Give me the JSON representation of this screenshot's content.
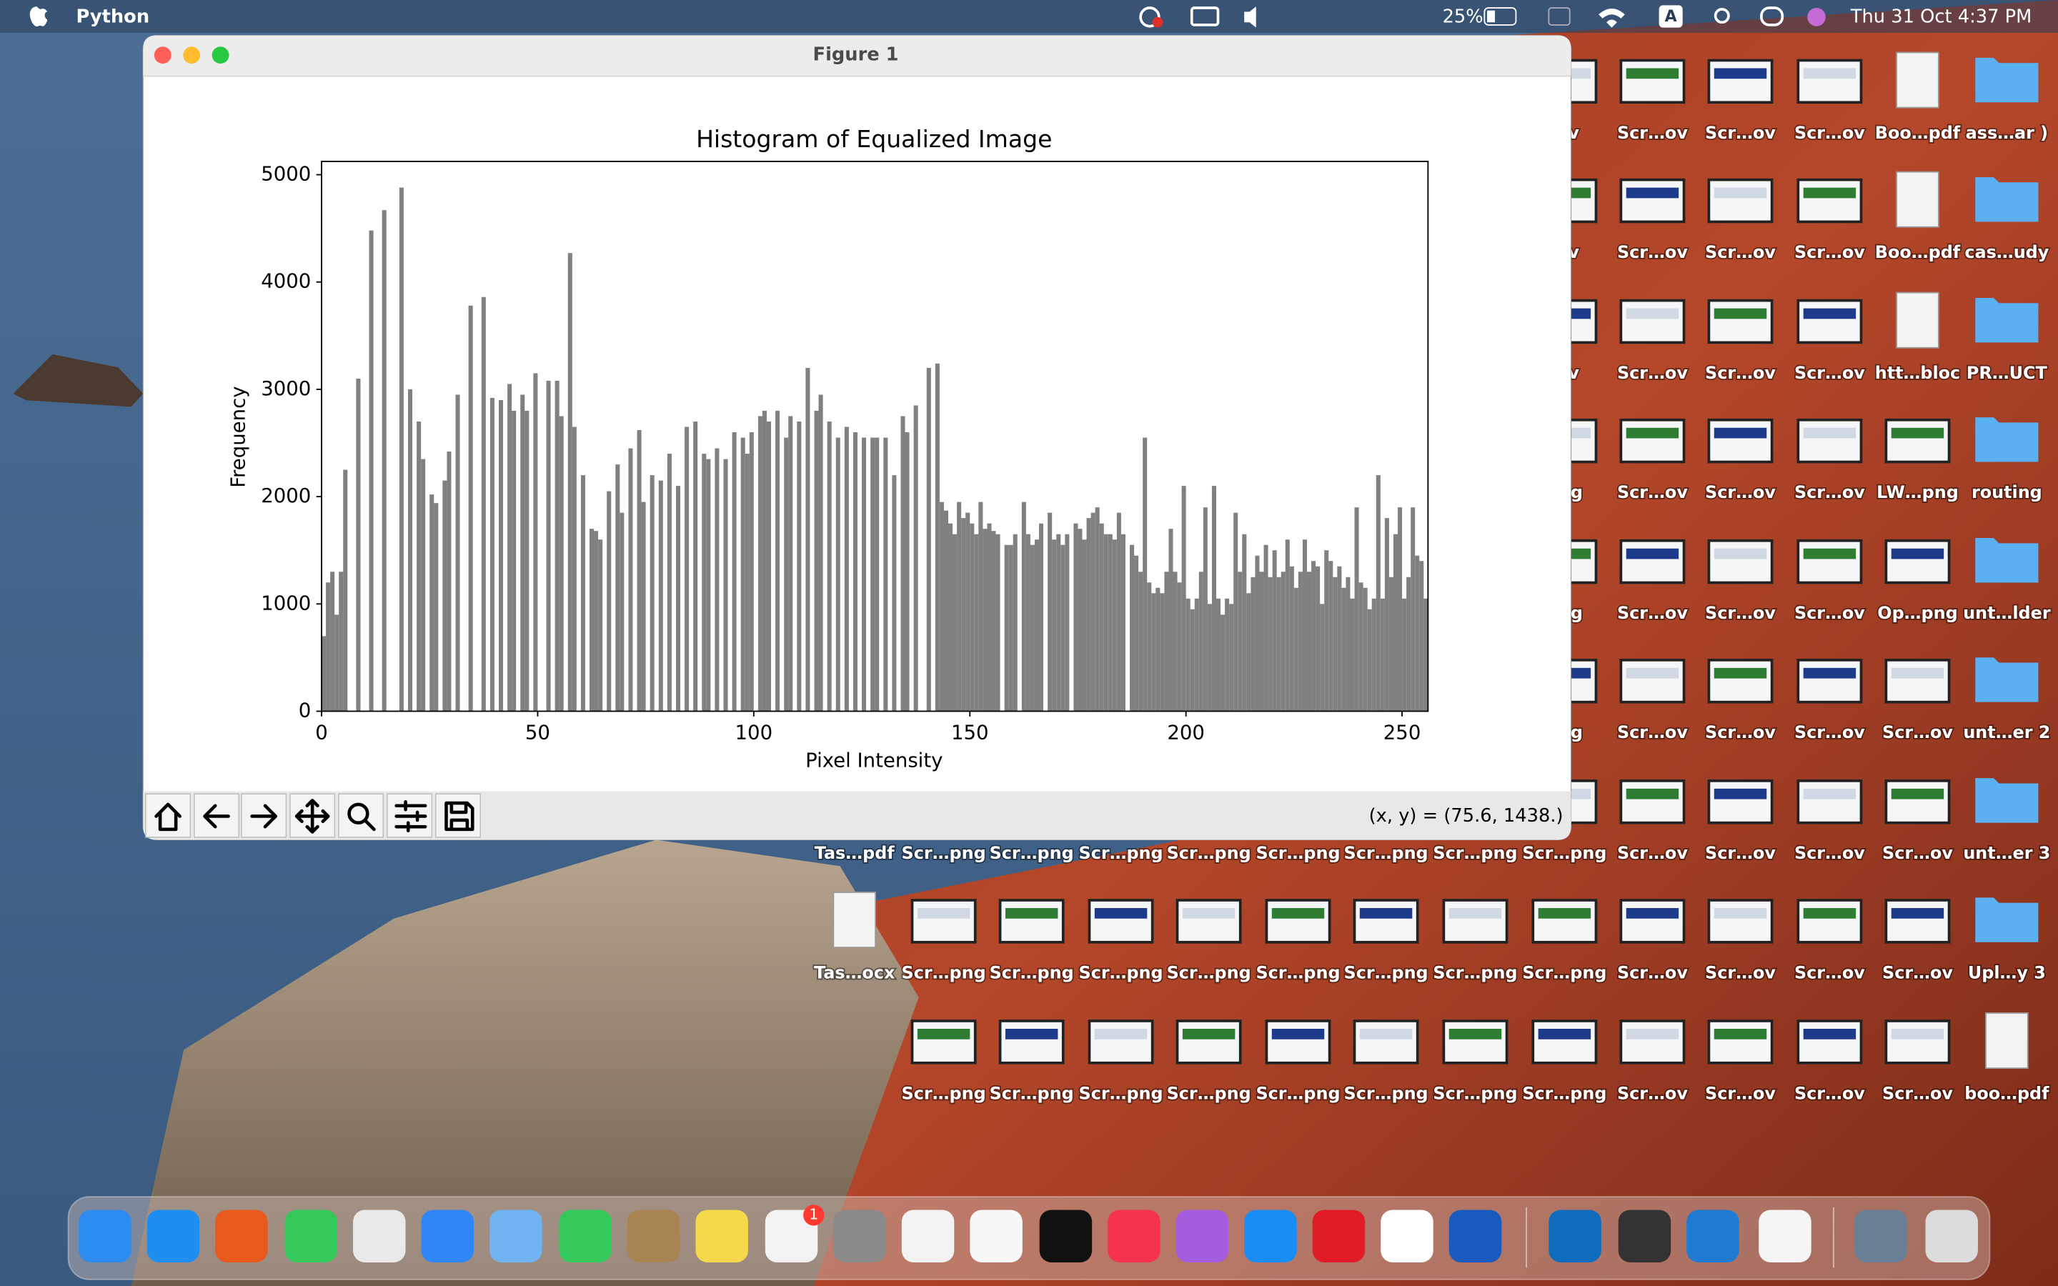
{
  "menubar": {
    "app": "Python",
    "input": "A",
    "battery": "25%",
    "clock": "Thu 31 Oct  4:37 PM"
  },
  "window": {
    "title": "Figure 1",
    "status": "(x, y) = (75.6, 1438.)"
  },
  "chart_data": {
    "type": "histogram",
    "title": "Histogram of Equalized Image",
    "x_label": "Pixel Intensity",
    "y_label": "Frequency",
    "color": "#808080",
    "bins": [
      0,
      1,
      2,
      3,
      4,
      5,
      6,
      7,
      8,
      9,
      10,
      11,
      12,
      13,
      14,
      15,
      16,
      17,
      18,
      19,
      20,
      21,
      22,
      23,
      24,
      25,
      26,
      27,
      28,
      29,
      30,
      31,
      32,
      33,
      34,
      35,
      36,
      37,
      38,
      39,
      40,
      41,
      42,
      43,
      44,
      45,
      46,
      47,
      48,
      49,
      50,
      51,
      52,
      53,
      54,
      55,
      56,
      57,
      58,
      59,
      60,
      61,
      62,
      63,
      64,
      65,
      66,
      67,
      68,
      69,
      70,
      71,
      72,
      73,
      74,
      75,
      76,
      77,
      78,
      79,
      80,
      81,
      82,
      83,
      84,
      85,
      86,
      87,
      88,
      89,
      90,
      91,
      92,
      93,
      94,
      95,
      96,
      97,
      98,
      99,
      100,
      101,
      102,
      103,
      104,
      105,
      106,
      107,
      108,
      109,
      110,
      111,
      112,
      113,
      114,
      115,
      116,
      117,
      118,
      119,
      120,
      121,
      122,
      123,
      124,
      125,
      126,
      127,
      128,
      129,
      130,
      131,
      132,
      133,
      134,
      135,
      136,
      137,
      138,
      139,
      140,
      141,
      142,
      143,
      144,
      145,
      146,
      147,
      148,
      149,
      150,
      151,
      152,
      153,
      154,
      155,
      156,
      157,
      158,
      159,
      160,
      161,
      162,
      163,
      164,
      165,
      166,
      167,
      168,
      169,
      170,
      171,
      172,
      173,
      174,
      175,
      176,
      177,
      178,
      179,
      180,
      181,
      182,
      183,
      184,
      185,
      186,
      187,
      188,
      189,
      190,
      191,
      192,
      193,
      194,
      195,
      196,
      197,
      198,
      199,
      200,
      201,
      202,
      203,
      204,
      205,
      206,
      207,
      208,
      209,
      210,
      211,
      212,
      213,
      214,
      215,
      216,
      217,
      218,
      219,
      220,
      221,
      222,
      223,
      224,
      225,
      226,
      227,
      228,
      229,
      230,
      231,
      232,
      233,
      234,
      235,
      236,
      237,
      238,
      239,
      240,
      241,
      242,
      243,
      244,
      245,
      246,
      247,
      248,
      249,
      250,
      251,
      252,
      253,
      254,
      255,
      256
    ],
    "counts": [
      700,
      1200,
      1300,
      900,
      1300,
      2250,
      0,
      0,
      3100,
      0,
      0,
      4480,
      0,
      0,
      4670,
      0,
      0,
      0,
      4880,
      0,
      3000,
      0,
      2700,
      2350,
      0,
      2020,
      1940,
      0,
      2150,
      2420,
      0,
      2950,
      0,
      0,
      3780,
      0,
      0,
      3860,
      0,
      2920,
      0,
      2900,
      0,
      3050,
      2800,
      0,
      2950,
      2800,
      0,
      3150,
      0,
      0,
      3080,
      0,
      3080,
      2750,
      0,
      4270,
      2650,
      0,
      2200,
      0,
      1700,
      1680,
      1600,
      0,
      2050,
      0,
      2300,
      1850,
      0,
      2450,
      0,
      2620,
      1950,
      0,
      2200,
      0,
      2150,
      0,
      2400,
      0,
      2100,
      0,
      2650,
      0,
      2700,
      0,
      2400,
      2350,
      0,
      2450,
      0,
      2350,
      0,
      2600,
      0,
      2550,
      2400,
      2600,
      0,
      2750,
      2800,
      2700,
      0,
      2800,
      0,
      2550,
      2750,
      0,
      2700,
      0,
      3200,
      0,
      2800,
      2950,
      0,
      2700,
      0,
      2550,
      0,
      2650,
      0,
      2600,
      0,
      2550,
      0,
      2550,
      2550,
      0,
      2550,
      0,
      2200,
      0,
      2750,
      2600,
      0,
      2850,
      0,
      0,
      3200,
      0,
      3240,
      1950,
      1870,
      1750,
      1650,
      1950,
      1800,
      1850,
      1750,
      1650,
      1950,
      1700,
      1750,
      1680,
      1650,
      0,
      1550,
      1550,
      1650,
      0,
      1950,
      1650,
      1550,
      1600,
      1750,
      0,
      1850,
      1600,
      1650,
      1550,
      1650,
      0,
      1750,
      1700,
      1600,
      1800,
      1850,
      1900,
      1750,
      1650,
      1650,
      1600,
      1850,
      1650,
      0,
      1550,
      1450,
      1300,
      2550,
      1200,
      1100,
      1150,
      1100,
      1300,
      1700,
      1300,
      1200,
      2100,
      1050,
      950,
      1050,
      1300,
      1900,
      1000,
      2100,
      1050,
      900,
      1050,
      1000,
      1850,
      1300,
      1650,
      1100,
      1250,
      1450,
      1300,
      1550,
      1250,
      1500,
      1250,
      1300,
      1600,
      1350,
      1150,
      1300,
      1600,
      1300,
      1400,
      1350,
      1000,
      1500,
      1400,
      1250,
      1350,
      1150,
      1250,
      1050,
      1900,
      1200,
      1150,
      950,
      1050,
      2200,
      1050,
      1800,
      1250,
      1650,
      1900,
      1050,
      1250,
      1900,
      1450,
      1400,
      1050
    ],
    "xlim": [
      0,
      256
    ],
    "ylim": [
      0,
      5124
    ],
    "xticks": [
      0,
      50,
      100,
      150,
      200,
      250
    ],
    "yticks": [
      0,
      1000,
      2000,
      3000,
      4000,
      5000
    ]
  },
  "desktop": {
    "rows": [
      [
        null,
        null,
        null,
        null,
        null,
        null,
        null,
        null,
        ".ov",
        "Scr…ov",
        "Scr…ov",
        "Scr…ov",
        "Boo…pdf",
        "ass…ar )"
      ],
      [
        null,
        null,
        null,
        null,
        null,
        null,
        null,
        null,
        ".ov",
        "Scr…ov",
        "Scr…ov",
        "Scr…ov",
        "Boo…pdf",
        "cas…udy"
      ],
      [
        null,
        null,
        null,
        null,
        null,
        null,
        null,
        null,
        ".ov",
        "Scr…ov",
        "Scr…ov",
        "Scr…ov",
        "htt…bloc",
        "PR…UCT"
      ],
      [
        null,
        null,
        null,
        null,
        null,
        null,
        null,
        null,
        "png",
        "Scr…ov",
        "Scr…ov",
        "Scr…ov",
        "LW…png",
        "routing"
      ],
      [
        null,
        null,
        null,
        null,
        null,
        null,
        null,
        null,
        "png",
        "Scr…ov",
        "Scr…ov",
        "Scr…ov",
        "Op…png",
        "unt…lder"
      ],
      [
        null,
        null,
        null,
        null,
        null,
        null,
        null,
        null,
        "png",
        "Scr…ov",
        "Scr…ov",
        "Scr…ov",
        "Scr…ov",
        "unt…er 2"
      ],
      [
        "Tas…pdf",
        "Scr…png",
        "Scr…png",
        "Scr…png",
        "Scr…png",
        "Scr…png",
        "Scr…png",
        "Scr…png",
        "Scr…png",
        "Scr…ov",
        "Scr…ov",
        "Scr…ov",
        "Scr…ov",
        "unt…er 3"
      ],
      [
        "Tas…ocx",
        "Scr…png",
        "Scr…png",
        "Scr…png",
        "Scr…png",
        "Scr…png",
        "Scr…png",
        "Scr…png",
        "Scr…png",
        "Scr…ov",
        "Scr…ov",
        "Scr…ov",
        "Scr…ov",
        "Upl…y 3"
      ],
      [
        null,
        "Scr…png",
        "Scr…png",
        "Scr…png",
        "Scr…png",
        "Scr…png",
        "Scr…png",
        "Scr…png",
        "Scr…png",
        "Scr…ov",
        "Scr…ov",
        "Scr…ov",
        "Scr…ov",
        "boo…pdf"
      ]
    ]
  },
  "dock": {
    "badge": "1"
  }
}
